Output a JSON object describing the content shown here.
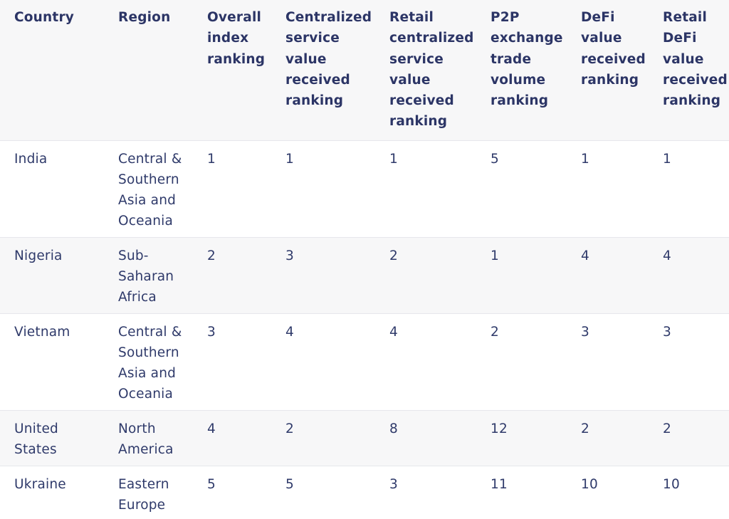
{
  "table": {
    "headers": [
      "Country",
      "Region",
      "Overall index ranking",
      "Centralized service value received ranking",
      "Retail centralized service value received ranking",
      "P2P exchange trade volume ranking",
      "DeFi value received ranking",
      "Retail DeFi value received ranking"
    ],
    "rows": [
      [
        "India",
        "Central & Southern Asia and Oceania",
        "1",
        "1",
        "1",
        "5",
        "1",
        "1"
      ],
      [
        "Nigeria",
        "Sub-Saharan Africa",
        "2",
        "3",
        "2",
        "1",
        "4",
        "4"
      ],
      [
        "Vietnam",
        "Central & Southern Asia and Oceania",
        "3",
        "4",
        "4",
        "2",
        "3",
        "3"
      ],
      [
        "United States",
        "North America",
        "4",
        "2",
        "8",
        "12",
        "2",
        "2"
      ],
      [
        "Ukraine",
        "Eastern Europe",
        "5",
        "5",
        "3",
        "11",
        "10",
        "10"
      ]
    ]
  }
}
